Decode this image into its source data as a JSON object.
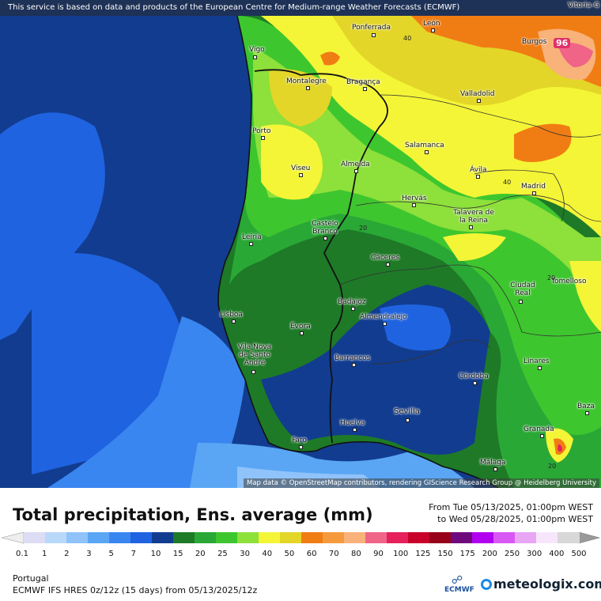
{
  "map": {
    "header_note": "This service is based on data and products of the European Centre for Medium-range Weather Forecasts (ECMWF)",
    "attribution": "Map data © OpenStreetMap contributors, rendering GIScience Research Group @ Heidelberg University",
    "corner_label": "Vitoria-G",
    "max_value": "96",
    "cities": [
      {
        "name": "Ponferrada"
      },
      {
        "name": "León"
      },
      {
        "name": "Burgos"
      },
      {
        "name": "Vigo"
      },
      {
        "name": "Montalegre"
      },
      {
        "name": "Bragança"
      },
      {
        "name": "Valladolid"
      },
      {
        "name": "Porto"
      },
      {
        "name": "Salamanca"
      },
      {
        "name": "Viseu"
      },
      {
        "name": "Almeida"
      },
      {
        "name": "Ávila"
      },
      {
        "name": "Madrid"
      },
      {
        "name": "Hervás"
      },
      {
        "name": "Talavera de la Reina"
      },
      {
        "name": "Castelo Branco"
      },
      {
        "name": "Leiria"
      },
      {
        "name": "Cáceres"
      },
      {
        "name": "Ciudad Real"
      },
      {
        "name": "Tomelloso"
      },
      {
        "name": "Badajoz"
      },
      {
        "name": "Lisboa"
      },
      {
        "name": "Almendralejo"
      },
      {
        "name": "Évora"
      },
      {
        "name": "Vila Nova de Santo André"
      },
      {
        "name": "Barrancos"
      },
      {
        "name": "Linares"
      },
      {
        "name": "Córdoba"
      },
      {
        "name": "Baza"
      },
      {
        "name": "Sevilla"
      },
      {
        "name": "Huelva"
      },
      {
        "name": "Granada"
      },
      {
        "name": "Faro"
      },
      {
        "name": "Málaga"
      }
    ],
    "contour_labels": [
      "40",
      "40",
      "20",
      "20",
      "20"
    ]
  },
  "legend": {
    "title": "Total precipitation, Ens. average (mm)",
    "from": "From Tue 05/13/2025, 01:00pm WEST",
    "to": "to Wed 05/28/2025, 01:00pm WEST",
    "ticks": [
      "0.1",
      "1",
      "2",
      "3",
      "5",
      "7",
      "10",
      "15",
      "20",
      "25",
      "30",
      "40",
      "50",
      "60",
      "70",
      "80",
      "90",
      "100",
      "125",
      "150",
      "175",
      "200",
      "250",
      "300",
      "400",
      "500"
    ],
    "colors": [
      "#dcdcf4",
      "#b9d9fb",
      "#8fc3fa",
      "#5aa6f5",
      "#3a86f0",
      "#1f63e0",
      "#123c8f",
      "#1e7a27",
      "#2aa836",
      "#3ec62f",
      "#8ee03a",
      "#f4f536",
      "#e3d628",
      "#f07d14",
      "#f59a3c",
      "#f8b27a",
      "#f06488",
      "#e5205a",
      "#c8002a",
      "#98001a",
      "#6e0a7e",
      "#b200f0",
      "#d957f5",
      "#e8a6f5",
      "#f7e6fb",
      "#d8d8d8"
    ],
    "region": "Portugal",
    "model": "ECMWF IFS HRES 0z/12z (15 days) from 05/13/2025/12z",
    "logo_ecmwf": "ECMWF",
    "logo_meteologix": "meteologix.com"
  }
}
